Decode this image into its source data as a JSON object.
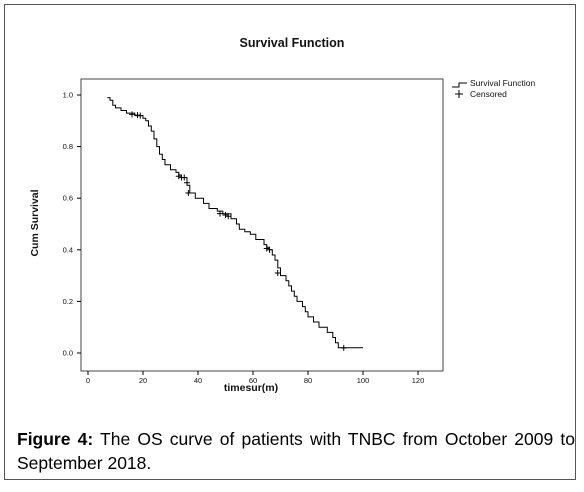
{
  "chart_data": {
    "type": "line",
    "title": "Survival Function",
    "xlabel": "timesur(m)",
    "ylabel": "Cum Survival",
    "xlim": [
      0,
      120
    ],
    "ylim": [
      0.0,
      1.0
    ],
    "x_ticks": [
      0,
      20,
      40,
      60,
      80,
      100,
      120
    ],
    "y_ticks": [
      0.0,
      0.2,
      0.4,
      0.6,
      0.8,
      1.0
    ],
    "x_tick_labels": [
      "0",
      "20",
      "40",
      "60",
      "80",
      "100",
      "120"
    ],
    "y_tick_labels": [
      "0.0",
      "0.2",
      "0.4",
      "0.6",
      "0.8",
      "1.0"
    ],
    "grid": false,
    "legend_position": "top-right (outside plot)",
    "legend": [
      "Survival Function",
      "Censored"
    ],
    "series": [
      {
        "name": "Survival Function",
        "step": true,
        "points": [
          [
            7,
            0.99
          ],
          [
            8,
            0.98
          ],
          [
            9,
            0.96
          ],
          [
            10,
            0.95
          ],
          [
            12,
            0.94
          ],
          [
            14,
            0.93
          ],
          [
            17,
            0.92
          ],
          [
            20,
            0.91
          ],
          [
            21,
            0.9
          ],
          [
            22,
            0.88
          ],
          [
            23,
            0.86
          ],
          [
            24,
            0.83
          ],
          [
            25,
            0.8
          ],
          [
            26,
            0.77
          ],
          [
            27,
            0.75
          ],
          [
            28,
            0.73
          ],
          [
            30,
            0.71
          ],
          [
            32,
            0.7
          ],
          [
            33,
            0.69
          ],
          [
            34,
            0.68
          ],
          [
            36,
            0.65
          ],
          [
            37,
            0.62
          ],
          [
            39,
            0.6
          ],
          [
            42,
            0.58
          ],
          [
            44,
            0.56
          ],
          [
            47,
            0.55
          ],
          [
            49,
            0.54
          ],
          [
            52,
            0.52
          ],
          [
            54,
            0.5
          ],
          [
            55,
            0.48
          ],
          [
            57,
            0.47
          ],
          [
            59,
            0.46
          ],
          [
            61,
            0.44
          ],
          [
            64,
            0.42
          ],
          [
            65,
            0.41
          ],
          [
            66,
            0.4
          ],
          [
            67,
            0.38
          ],
          [
            68,
            0.36
          ],
          [
            69,
            0.33
          ],
          [
            70,
            0.3
          ],
          [
            72,
            0.28
          ],
          [
            73,
            0.26
          ],
          [
            74,
            0.24
          ],
          [
            75,
            0.22
          ],
          [
            76,
            0.2
          ],
          [
            78,
            0.18
          ],
          [
            79,
            0.16
          ],
          [
            80,
            0.14
          ],
          [
            82,
            0.12
          ],
          [
            84,
            0.1
          ],
          [
            87,
            0.08
          ],
          [
            89,
            0.06
          ],
          [
            90,
            0.04
          ],
          [
            91,
            0.02
          ],
          [
            100,
            0.02
          ]
        ]
      },
      {
        "name": "Censored",
        "marker": "+",
        "points": [
          [
            16,
            0.925
          ],
          [
            18,
            0.922
          ],
          [
            19,
            0.92
          ],
          [
            33,
            0.685
          ],
          [
            34,
            0.68
          ],
          [
            35,
            0.68
          ],
          [
            36,
            0.66
          ],
          [
            36.5,
            0.62
          ],
          [
            48,
            0.54
          ],
          [
            50,
            0.535
          ],
          [
            51,
            0.53
          ],
          [
            65,
            0.405
          ],
          [
            66,
            0.4
          ],
          [
            69,
            0.31
          ],
          [
            93,
            0.02
          ]
        ]
      }
    ],
    "colors": {
      "line": "#000000",
      "axes": "#000000",
      "background": "#ffffff"
    }
  },
  "caption": {
    "label": "Figure 4:",
    "text": " The OS curve of patients with TNBC from October 2009 to September 2018."
  }
}
